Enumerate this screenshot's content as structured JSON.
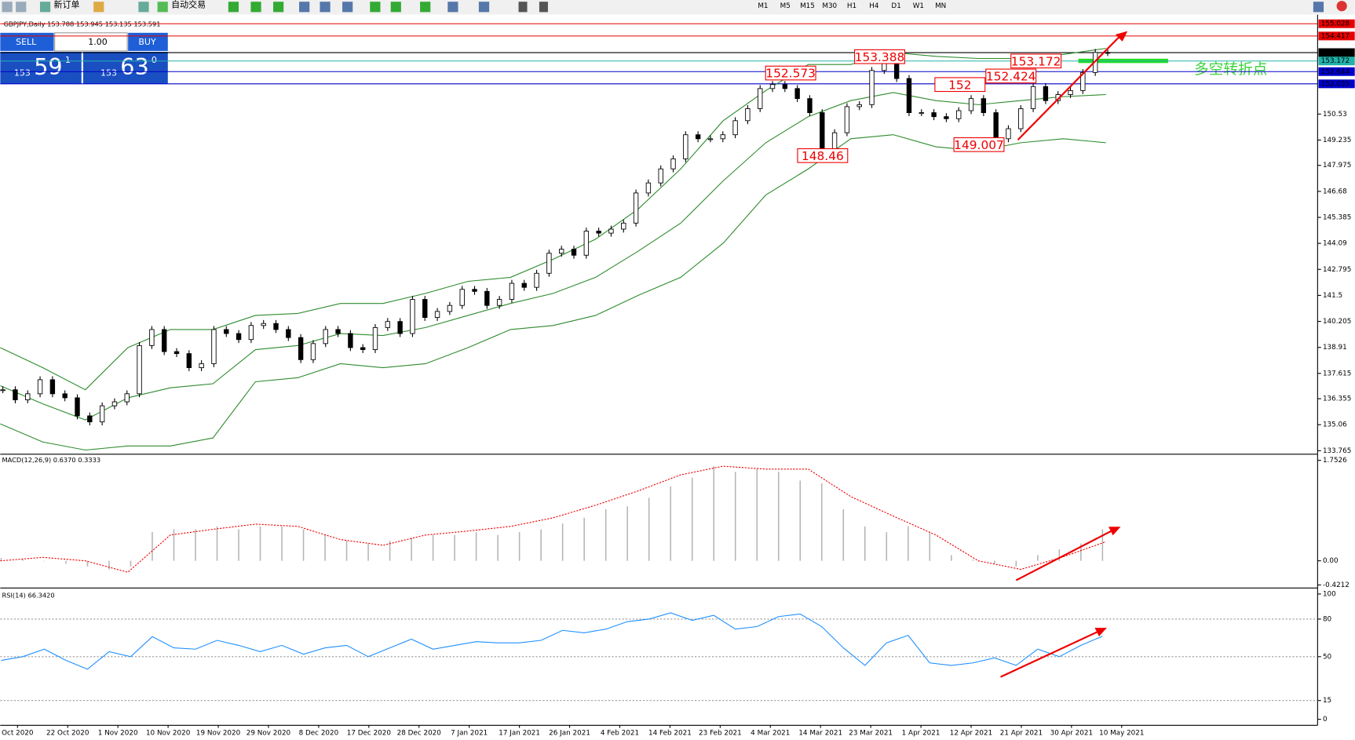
{
  "toolbar": {
    "new_order": "新订单",
    "auto_trading": "自动交易",
    "timeframes": [
      "M1",
      "M5",
      "M15",
      "M30",
      "H1",
      "H4",
      "D1",
      "W1",
      "MN"
    ]
  },
  "trade_panel": {
    "sell": "SELL",
    "buy": "BUY",
    "lot": "1.00",
    "sell_big": "153",
    "sell_main": "59",
    "sell_sup": "1",
    "buy_big": "153",
    "buy_main": "63",
    "buy_sup": "0"
  },
  "chart": {
    "symbol_info": "GBPJPY,Daily  153.788 153.945 153.135 153.591",
    "note": "多空转折点",
    "ylim": [
      133.635,
      155.35
    ],
    "yticks": [
      150.53,
      149.235,
      147.975,
      146.68,
      145.385,
      144.09,
      142.795,
      141.5,
      140.205,
      138.91,
      137.615,
      136.355,
      135.06,
      133.765
    ],
    "price_lines": [
      {
        "value": 155.028,
        "color": "#e60000"
      },
      {
        "value": 154.417,
        "color": "#e60000"
      },
      {
        "value": 153.591,
        "color": "#000000"
      },
      {
        "value": 153.172,
        "color": "#20b2aa"
      },
      {
        "value": 152.644,
        "color": "#0000cc"
      },
      {
        "value": 152.035,
        "color": "#0000cc"
      }
    ],
    "closes": [
      136.8,
      136.3,
      136.6,
      137.3,
      136.6,
      136.4,
      135.5,
      135.2,
      136.0,
      136.2,
      136.6,
      139.0,
      139.8,
      138.7,
      138.6,
      137.9,
      138.1,
      139.8,
      139.6,
      139.3,
      140.0,
      140.1,
      139.8,
      139.4,
      138.3,
      139.1,
      139.8,
      139.6,
      138.9,
      138.8,
      139.9,
      140.2,
      139.6,
      141.3,
      140.4,
      140.7,
      141.0,
      141.8,
      141.7,
      141.0,
      141.3,
      142.1,
      141.9,
      142.6,
      143.6,
      143.8,
      143.5,
      144.7,
      144.6,
      144.8,
      145.1,
      146.6,
      147.1,
      147.8,
      148.3,
      149.5,
      149.3,
      149.3,
      149.5,
      150.2,
      150.8,
      151.8,
      152.0,
      151.8,
      151.3,
      150.6,
      148.8,
      149.6,
      150.9,
      151.0,
      152.7,
      153.1,
      152.3,
      150.6,
      150.6,
      150.4,
      150.3,
      150.7,
      151.3,
      150.6,
      149.3,
      149.8,
      150.8,
      151.9,
      151.2,
      151.5,
      151.7,
      152.6,
      153.6,
      153.591
    ],
    "bb_upper": [
      138.9,
      137.9,
      136.8,
      138.9,
      139.8,
      139.8,
      140.5,
      140.6,
      141.1,
      141.1,
      141.6,
      142.2,
      142.4,
      143.3,
      144.3,
      145.8,
      147.8,
      150.2,
      151.7,
      153.0,
      153.0,
      153.6,
      153.4,
      153.3,
      153.3,
      153.5,
      153.8
    ],
    "bb_middle": [
      137.0,
      136.1,
      135.3,
      136.4,
      136.9,
      137.1,
      138.8,
      139.0,
      139.6,
      139.5,
      139.9,
      140.5,
      141.1,
      141.6,
      142.4,
      143.7,
      145.1,
      147.2,
      149.1,
      150.4,
      151.2,
      151.6,
      151.2,
      151.0,
      151.2,
      151.4,
      151.5
    ],
    "bb_lower": [
      135.1,
      134.2,
      133.8,
      134.0,
      134.0,
      134.4,
      137.2,
      137.4,
      138.1,
      137.9,
      138.1,
      138.9,
      139.8,
      140.0,
      140.5,
      141.5,
      142.4,
      144.1,
      146.5,
      147.8,
      149.3,
      149.5,
      148.9,
      148.7,
      149.1,
      149.3,
      149.1
    ],
    "annotations": [
      153.388,
      152.573,
      152.0,
      152.424,
      153.172,
      148.46,
      149.007
    ],
    "macd_label": "MACD(12,26,9) 0.6370 0.3333",
    "macd_ylim": [
      -0.46,
      1.83
    ],
    "macd_yticks": [
      1.7526,
      {
        "value": 0,
        "label": "0.00"
      },
      -0.4212
    ],
    "macd_hist": [
      0.05,
      0.03,
      0.0,
      -0.05,
      -0.1,
      -0.15,
      -0.1,
      0.5,
      0.55,
      0.55,
      0.6,
      0.55,
      0.6,
      0.6,
      0.55,
      0.45,
      0.35,
      0.3,
      0.35,
      0.4,
      0.45,
      0.45,
      0.5,
      0.45,
      0.5,
      0.55,
      0.65,
      0.75,
      0.9,
      0.95,
      1.1,
      1.3,
      1.45,
      1.65,
      1.55,
      1.6,
      1.55,
      1.4,
      1.35,
      0.9,
      0.6,
      0.5,
      0.6,
      0.5,
      0.1,
      0.02,
      -0.05,
      -0.1,
      0.1,
      0.2,
      0.3,
      0.55
    ],
    "macd_signal": [
      0.0,
      0.06,
      0.0,
      -0.2,
      0.45,
      0.55,
      0.64,
      0.6,
      0.37,
      0.27,
      0.45,
      0.52,
      0.6,
      0.75,
      0.97,
      1.22,
      1.5,
      1.65,
      1.6,
      1.6,
      1.12,
      0.78,
      0.45,
      0.0,
      -0.15,
      0.07,
      0.3333
    ],
    "rsi_label": "RSI(14) 66.3420",
    "rsi_ylim": [
      -4.8,
      103.4
    ],
    "rsi_yticks": [
      100,
      80,
      50,
      15,
      0
    ],
    "rsi_levels": [
      80,
      50,
      15
    ],
    "rsi": [
      47,
      50,
      56,
      47,
      40,
      54,
      50,
      66,
      57,
      56,
      63,
      59,
      54,
      59,
      52,
      57,
      59,
      50,
      57,
      64,
      56,
      59,
      62,
      61,
      61,
      63,
      71,
      69,
      72,
      78,
      80,
      85,
      79,
      83,
      72,
      74,
      82,
      84,
      74,
      57,
      43,
      61,
      67,
      45,
      43,
      45,
      49,
      43,
      56,
      50,
      59,
      66.342
    ],
    "dates": [
      "Oct 2020",
      "22 Oct 2020",
      "1 Nov 2020",
      "10 Nov 2020",
      "19 Nov 2020",
      "29 Nov 2020",
      "8 Dec 2020",
      "17 Dec 2020",
      "28 Dec 2020",
      "7 Jan 2021",
      "17 Jan 2021",
      "26 Jan 2021",
      "4 Feb 2021",
      "14 Feb 2021",
      "23 Feb 2021",
      "4 Mar 2021",
      "14 Mar 2021",
      "23 Mar 2021",
      "1 Apr 2021",
      "12 Apr 2021",
      "21 Apr 2021",
      "30 Apr 2021",
      "10 May 2021"
    ]
  }
}
